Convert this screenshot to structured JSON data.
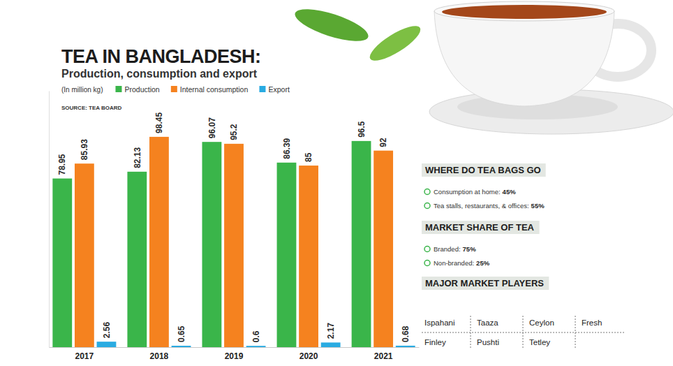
{
  "chart_data": {
    "type": "bar",
    "title": "TEA IN BANGLADESH:",
    "subtitle": "Production, consumption and export",
    "ylabel": "(In million kg)",
    "source": "SOURCE: TEA BOARD",
    "categories": [
      "2017",
      "2018",
      "2019",
      "2020",
      "2021"
    ],
    "series": [
      {
        "name": "Production",
        "color": "#3ab54a",
        "values": [
          78.95,
          82.13,
          96.07,
          86.39,
          96.5
        ]
      },
      {
        "name": "Internal consumption",
        "color": "#f5821f",
        "values": [
          85.93,
          98.45,
          95.2,
          85,
          92
        ]
      },
      {
        "name": "Export",
        "color": "#29abe2",
        "values": [
          2.56,
          0.65,
          0.6,
          2.17,
          0.68
        ]
      }
    ],
    "ylim": [
      0,
      120
    ],
    "grid": false,
    "legend": "top-left",
    "data_labels": true,
    "tick_labels": "x"
  },
  "sidebar": {
    "sections": [
      {
        "heading": "WHERE DO TEA BAGS GO",
        "items": [
          {
            "label": "Consumption at home:",
            "value": "45%"
          },
          {
            "label": "Tea stalls, restaurants, & offices:",
            "value": "55%"
          }
        ]
      },
      {
        "heading": "MARKET SHARE OF TEA",
        "items": [
          {
            "label": "Branded:",
            "value": "75%"
          },
          {
            "label": "Non-branded:",
            "value": "25%"
          }
        ]
      },
      {
        "heading": "MAJOR MARKET PLAYERS",
        "players": [
          [
            "Ispahani",
            "Taaza",
            "Ceylon",
            "Fresh"
          ],
          [
            "Finley",
            "Pushti",
            "Tetley"
          ]
        ]
      }
    ]
  }
}
